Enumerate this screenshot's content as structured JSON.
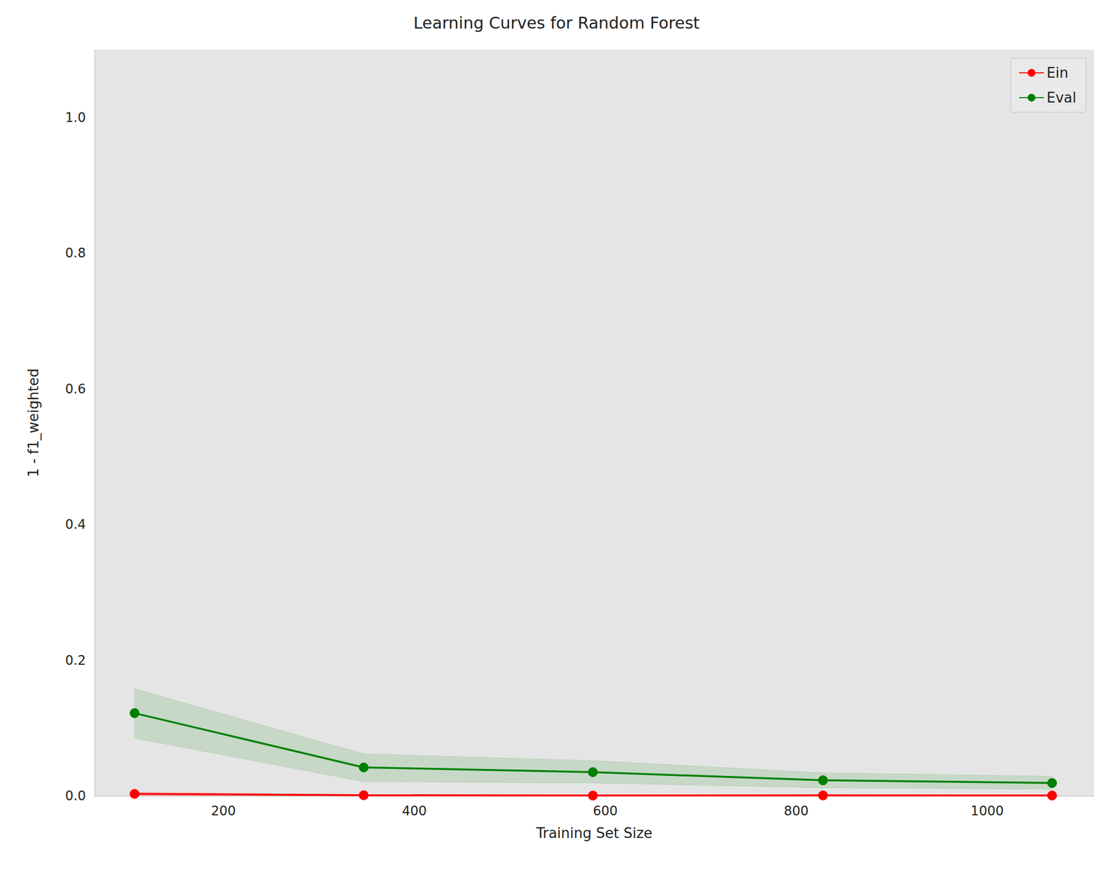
{
  "chart_data": {
    "type": "line",
    "title": "Learning Curves for Random Forest",
    "x_label": "Training Set Size",
    "y_label": "1 - f1_weighted",
    "x": [
      107,
      347,
      587,
      828,
      1068
    ],
    "series": [
      {
        "name": "Ein",
        "color": "#ff0000",
        "marker": "circle",
        "line_style": "solid",
        "values": [
          0.003,
          0.001,
          0.0005,
          0.0007,
          0.0005
        ],
        "lower": [
          0.0005,
          0.0002,
          0.0001,
          0.0002,
          0.0001
        ],
        "upper": [
          0.0055,
          0.0018,
          0.0009,
          0.0012,
          0.0009
        ]
      },
      {
        "name": "Eval",
        "color": "#008000",
        "marker": "circle",
        "line_style": "solid",
        "values": [
          0.122,
          0.042,
          0.035,
          0.023,
          0.019
        ],
        "lower": [
          0.085,
          0.021,
          0.019,
          0.012,
          0.01
        ],
        "upper": [
          0.158,
          0.062,
          0.052,
          0.034,
          0.029
        ]
      }
    ],
    "xlim": [
      65,
      1112
    ],
    "xticks": [
      200,
      400,
      600,
      800,
      1000
    ],
    "ylim": [
      0,
      1.1
    ],
    "yticks": [
      {
        "value": 0,
        "label": "0.0"
      },
      {
        "value": 0.2,
        "label": "0.2"
      },
      {
        "value": 0.4,
        "label": "0.4"
      },
      {
        "value": 0.6,
        "label": "0.6"
      },
      {
        "value": 0.8,
        "label": "0.8"
      },
      {
        "value": 1.0,
        "label": "1.0"
      }
    ],
    "grid": false,
    "legend": "upper right"
  }
}
